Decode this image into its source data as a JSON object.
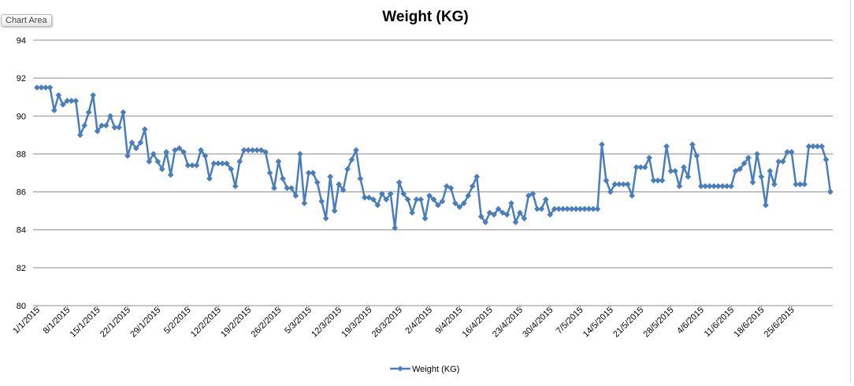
{
  "tooltip": {
    "label": "Chart Area"
  },
  "chart_data": {
    "type": "line",
    "title": "Weight (KG)",
    "xlabel": "",
    "ylabel": "",
    "ylim": [
      80,
      94
    ],
    "yticks": [
      80,
      82,
      84,
      86,
      88,
      90,
      92,
      94
    ],
    "grid": true,
    "legend": "bottom",
    "x_tick_labels": [
      "1/1/2015",
      "8/1/2015",
      "15/1/2015",
      "22/1/2015",
      "29/1/2015",
      "5/2/2015",
      "12/2/2015",
      "19/2/2015",
      "26/2/2015",
      "5/3/2015",
      "12/3/2015",
      "19/3/2015",
      "26/3/2015",
      "2/4/2015",
      "9/4/2015",
      "16/4/2015",
      "23/4/2015",
      "30/4/2015",
      "7/5/2015",
      "14/5/2015",
      "21/5/2015",
      "28/5/2015",
      "4/6/2015",
      "11/6/2015",
      "18/6/2015",
      "25/6/2015"
    ],
    "x_start": "1/1/2015",
    "x_end": "30/6/2015",
    "series": [
      {
        "name": "Weight (KG)",
        "color": "#4a7ebb",
        "values": [
          91.5,
          91.5,
          91.5,
          91.5,
          90.3,
          91.1,
          90.6,
          90.8,
          90.8,
          90.8,
          89.0,
          89.5,
          90.2,
          91.1,
          89.2,
          89.5,
          89.5,
          90.0,
          89.4,
          89.4,
          90.2,
          87.9,
          88.6,
          88.3,
          88.6,
          89.3,
          87.6,
          88.0,
          87.6,
          87.2,
          88.1,
          86.9,
          88.2,
          88.3,
          88.1,
          87.4,
          87.4,
          87.4,
          88.2,
          87.9,
          86.7,
          87.5,
          87.5,
          87.5,
          87.5,
          87.2,
          86.3,
          87.6,
          88.2,
          88.2,
          88.2,
          88.2,
          88.2,
          88.1,
          87.0,
          86.2,
          87.6,
          86.7,
          86.2,
          86.2,
          85.8,
          88.0,
          85.4,
          87.0,
          87.0,
          86.5,
          85.5,
          84.6,
          86.8,
          85.0,
          86.4,
          86.1,
          87.2,
          87.7,
          88.2,
          86.7,
          85.7,
          85.7,
          85.6,
          85.3,
          85.9,
          85.6,
          85.9,
          84.1,
          86.5,
          85.9,
          85.6,
          84.9,
          85.6,
          85.6,
          84.6,
          85.8,
          85.6,
          85.3,
          85.5,
          86.3,
          86.2,
          85.4,
          85.2,
          85.4,
          85.8,
          86.3,
          86.8,
          84.7,
          84.4,
          84.9,
          84.8,
          85.1,
          84.9,
          84.8,
          85.4,
          84.4,
          84.9,
          84.6,
          85.8,
          85.9,
          85.1,
          85.1,
          85.6,
          84.8,
          85.1,
          85.1,
          85.1,
          85.1,
          85.1,
          85.1,
          85.1,
          85.1,
          85.1,
          85.1,
          85.1,
          88.5,
          86.6,
          86.0,
          86.4,
          86.4,
          86.4,
          86.4,
          85.8,
          87.3,
          87.3,
          87.3,
          87.8,
          86.6,
          86.6,
          86.6,
          88.4,
          87.1,
          87.1,
          86.3,
          87.3,
          86.8,
          88.5,
          87.9,
          86.3,
          86.3,
          86.3,
          86.3,
          86.3,
          86.3,
          86.3,
          86.3,
          87.1,
          87.2,
          87.5,
          87.8,
          86.5,
          88.0,
          86.8,
          85.3,
          87.1,
          86.4,
          87.6,
          87.6,
          88.1,
          88.1,
          86.4,
          86.4,
          86.4,
          88.4,
          88.4,
          88.4,
          88.4,
          87.7,
          86.0
        ]
      }
    ]
  }
}
